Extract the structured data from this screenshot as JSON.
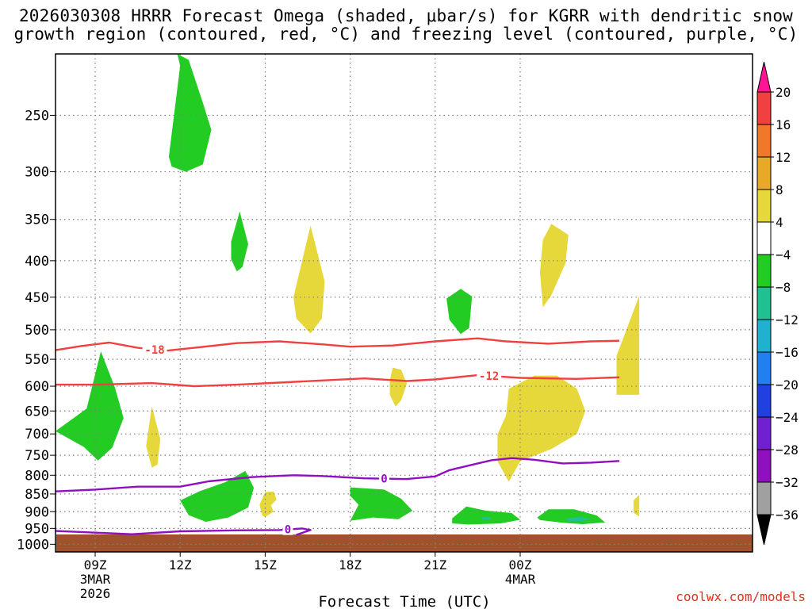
{
  "title_line1": "2026030308 HRRR Forecast Omega (shaded, μbar/s) for KGRR with dendritic snow",
  "title_line2": "growth region (contoured, red, °C) and freezing level (contoured, purple, °C)",
  "credit": "coolwx.com/models",
  "colors": {
    "ground": "#a0522d",
    "isotherm_dgz": "#f04040",
    "freezing_level": "#9010c0",
    "grid": "#808080",
    "upward_motion": "#22cc22",
    "downward_motion": "#e6d83a",
    "strong_upward": "#20c090"
  },
  "chart_data": {
    "type": "contour",
    "xlabel": "Forecast Time (UTC)",
    "ylabel": "",
    "xlim": [
      7.6,
      32.2
    ],
    "ylim_hpa": [
      1025,
      205
    ],
    "x_ticks": [
      {
        "x": 9,
        "label": "09Z",
        "sub1": "3MAR",
        "sub2": "2026"
      },
      {
        "x": 12,
        "label": "12Z",
        "sub1": "",
        "sub2": ""
      },
      {
        "x": 15,
        "label": "15Z",
        "sub1": "",
        "sub2": ""
      },
      {
        "x": 18,
        "label": "18Z",
        "sub1": "",
        "sub2": ""
      },
      {
        "x": 21,
        "label": "21Z",
        "sub1": "",
        "sub2": ""
      },
      {
        "x": 24,
        "label": "00Z",
        "sub1": "4MAR",
        "sub2": ""
      }
    ],
    "y_ticks": [
      250,
      300,
      350,
      400,
      450,
      500,
      550,
      600,
      650,
      700,
      750,
      800,
      850,
      900,
      950,
      1000
    ],
    "colorbar": {
      "labels": [
        "20",
        "16",
        "12",
        "8",
        "4",
        "−4",
        "−8",
        "−12",
        "−16",
        "−20",
        "−24",
        "−28",
        "−32",
        "−36"
      ],
      "colors": [
        "#ff1493",
        "#f04040",
        "#f07828",
        "#e8a828",
        "#e6d83a",
        "#ffffff",
        "#22cc22",
        "#20c090",
        "#20b0d0",
        "#2080f0",
        "#2040e0",
        "#7020d0",
        "#9010c0",
        "#a0a0a0",
        "#000000"
      ]
    },
    "contours": [
      {
        "name": "-18",
        "color": "isotherm_dgz",
        "points": [
          [
            7.6,
            534
          ],
          [
            8.5,
            527
          ],
          [
            9.5,
            521
          ],
          [
            10.5,
            530
          ],
          [
            11.5,
            535
          ],
          [
            12.5,
            530
          ],
          [
            14,
            522
          ],
          [
            15.5,
            519
          ],
          [
            17,
            524
          ],
          [
            18,
            528
          ],
          [
            19.5,
            526
          ],
          [
            21,
            519
          ],
          [
            22.5,
            514
          ],
          [
            23.5,
            519
          ],
          [
            25,
            523
          ],
          [
            26.5,
            519
          ],
          [
            27.5,
            518
          ]
        ],
        "label_x": 11.1
      },
      {
        "name": "-12",
        "color": "isotherm_dgz",
        "points": [
          [
            7.6,
            597
          ],
          [
            9,
            597
          ],
          [
            11,
            594
          ],
          [
            12.5,
            600
          ],
          [
            14,
            597
          ],
          [
            15.5,
            593
          ],
          [
            17,
            589
          ],
          [
            18.5,
            585
          ],
          [
            20,
            590
          ],
          [
            21,
            587
          ],
          [
            22.5,
            579
          ],
          [
            24,
            584
          ],
          [
            26,
            586
          ],
          [
            27.5,
            583
          ]
        ],
        "label_x": 22.9
      },
      {
        "name": "0",
        "color": "freezing_level",
        "points": [
          [
            7.6,
            843
          ],
          [
            9,
            838
          ],
          [
            10.5,
            830
          ],
          [
            12,
            830
          ],
          [
            13,
            816
          ],
          [
            14.5,
            805
          ],
          [
            16,
            800
          ],
          [
            17,
            802
          ],
          [
            18.5,
            808
          ],
          [
            20,
            810
          ],
          [
            21,
            803
          ],
          [
            21.5,
            787
          ],
          [
            22.5,
            770
          ],
          [
            23,
            762
          ],
          [
            23.7,
            757
          ],
          [
            24.5,
            761
          ],
          [
            25.5,
            770
          ],
          [
            26.5,
            768
          ],
          [
            27.5,
            764
          ]
        ],
        "label_x": 19.2
      },
      {
        "name": "0",
        "color": "freezing_level",
        "points": [
          [
            7.6,
            958
          ],
          [
            9,
            963
          ],
          [
            10.3,
            968
          ],
          [
            12,
            959
          ],
          [
            14,
            956
          ],
          [
            15.5,
            955
          ],
          [
            16.3,
            950
          ],
          [
            16.6,
            955
          ],
          [
            16.1,
            970
          ]
        ],
        "label_x": 15.8
      }
    ],
    "regions": [
      {
        "color": "upward_motion",
        "polygon": [
          [
            11.6,
            286
          ],
          [
            12.0,
            213
          ],
          [
            11.9,
            205
          ],
          [
            12.3,
            209
          ],
          [
            12.8,
            240
          ],
          [
            13.1,
            262
          ],
          [
            12.8,
            293
          ],
          [
            12.2,
            300
          ],
          [
            11.7,
            295
          ]
        ]
      },
      {
        "color": "upward_motion",
        "polygon": [
          [
            13.8,
            376
          ],
          [
            14.1,
            341
          ],
          [
            14.4,
            379
          ],
          [
            14.2,
            408
          ],
          [
            14.0,
            414
          ],
          [
            13.8,
            398
          ]
        ]
      },
      {
        "color": "upward_motion",
        "polygon": [
          [
            7.6,
            694
          ],
          [
            8.7,
            645
          ],
          [
            9.2,
            536
          ],
          [
            9.7,
            603
          ],
          [
            10.0,
            665
          ],
          [
            9.6,
            732
          ],
          [
            9.1,
            763
          ],
          [
            8.6,
            730
          ]
        ]
      },
      {
        "color": "upward_motion",
        "polygon": [
          [
            12.0,
            868
          ],
          [
            12.7,
            842
          ],
          [
            13.6,
            818
          ],
          [
            14.3,
            789
          ],
          [
            14.6,
            833
          ],
          [
            14.4,
            888
          ],
          [
            13.7,
            917
          ],
          [
            12.9,
            930
          ],
          [
            12.3,
            910
          ]
        ]
      },
      {
        "color": "upward_motion",
        "polygon": [
          [
            18.0,
            832
          ],
          [
            19.2,
            838
          ],
          [
            19.8,
            863
          ],
          [
            20.2,
            897
          ],
          [
            19.7,
            922
          ],
          [
            18.8,
            917
          ],
          [
            18.0,
            927
          ],
          [
            18.3,
            880
          ],
          [
            18.0,
            855
          ]
        ]
      },
      {
        "color": "upward_motion",
        "polygon": [
          [
            21.6,
            920
          ],
          [
            22.1,
            885
          ],
          [
            22.8,
            897
          ],
          [
            23.7,
            904
          ],
          [
            24.0,
            924
          ],
          [
            23.3,
            935
          ],
          [
            22.2,
            938
          ],
          [
            21.6,
            935
          ]
        ]
      },
      {
        "color": "upward_motion",
        "polygon": [
          [
            24.6,
            917
          ],
          [
            25.0,
            893
          ],
          [
            25.9,
            893
          ],
          [
            26.7,
            911
          ],
          [
            27.0,
            932
          ],
          [
            26.2,
            937
          ],
          [
            25.5,
            933
          ],
          [
            24.7,
            925
          ]
        ]
      },
      {
        "color": "upward_motion",
        "polygon": [
          [
            21.4,
            452
          ],
          [
            21.9,
            438
          ],
          [
            22.3,
            449
          ],
          [
            22.2,
            497
          ],
          [
            21.9,
            507
          ],
          [
            21.5,
            484
          ]
        ]
      },
      {
        "color": "strong_upward",
        "polygon": [
          [
            22.6,
            917
          ],
          [
            22.9,
            915
          ],
          [
            23.0,
            922
          ],
          [
            22.7,
            924
          ]
        ]
      },
      {
        "color": "strong_upward",
        "polygon": [
          [
            25.6,
            920
          ],
          [
            26.1,
            915
          ],
          [
            26.5,
            921
          ],
          [
            26.2,
            928
          ],
          [
            25.7,
            928
          ]
        ]
      },
      {
        "color": "downward_motion",
        "polygon": [
          [
            16.0,
            450
          ],
          [
            16.6,
            357
          ],
          [
            17.1,
            428
          ],
          [
            17.0,
            482
          ],
          [
            16.6,
            506
          ],
          [
            16.1,
            482
          ]
        ]
      },
      {
        "color": "downward_motion",
        "polygon": [
          [
            24.7,
            415
          ],
          [
            24.8,
            374
          ],
          [
            25.1,
            355
          ],
          [
            25.7,
            368
          ],
          [
            25.6,
            403
          ],
          [
            25.1,
            447
          ],
          [
            24.8,
            465
          ]
        ]
      },
      {
        "color": "downward_motion",
        "polygon": [
          [
            10.8,
            728
          ],
          [
            11.0,
            640
          ],
          [
            11.3,
            712
          ],
          [
            11.2,
            773
          ],
          [
            11.0,
            781
          ]
        ]
      },
      {
        "color": "downward_motion",
        "polygon": [
          [
            19.4,
            589
          ],
          [
            19.5,
            565
          ],
          [
            19.8,
            569
          ],
          [
            20.0,
            595
          ],
          [
            19.8,
            628
          ],
          [
            19.6,
            641
          ],
          [
            19.4,
            617
          ]
        ]
      },
      {
        "color": "downward_motion",
        "polygon": [
          [
            23.2,
            701
          ],
          [
            23.5,
            660
          ],
          [
            23.6,
            605
          ],
          [
            24.5,
            580
          ],
          [
            25.3,
            580
          ],
          [
            26.0,
            605
          ],
          [
            26.3,
            650
          ],
          [
            26.0,
            700
          ],
          [
            25.1,
            735
          ],
          [
            24.0,
            765
          ],
          [
            23.6,
            817
          ],
          [
            23.2,
            765
          ]
        ]
      },
      {
        "color": "downward_motion",
        "polygon": [
          [
            14.8,
            880
          ],
          [
            15.0,
            845
          ],
          [
            15.3,
            843
          ],
          [
            15.4,
            866
          ],
          [
            15.2,
            882
          ],
          [
            15.3,
            900
          ],
          [
            15.0,
            915
          ],
          [
            14.9,
            912
          ]
        ]
      },
      {
        "color": "downward_motion",
        "polygon": [
          [
            27.4,
            544
          ],
          [
            28.2,
            448
          ],
          [
            28.2,
            617
          ],
          [
            27.4,
            617
          ]
        ]
      },
      {
        "color": "downward_motion",
        "polygon": [
          [
            28.0,
            868
          ],
          [
            28.2,
            853
          ],
          [
            28.2,
            914
          ],
          [
            28.0,
            903
          ]
        ]
      }
    ]
  }
}
